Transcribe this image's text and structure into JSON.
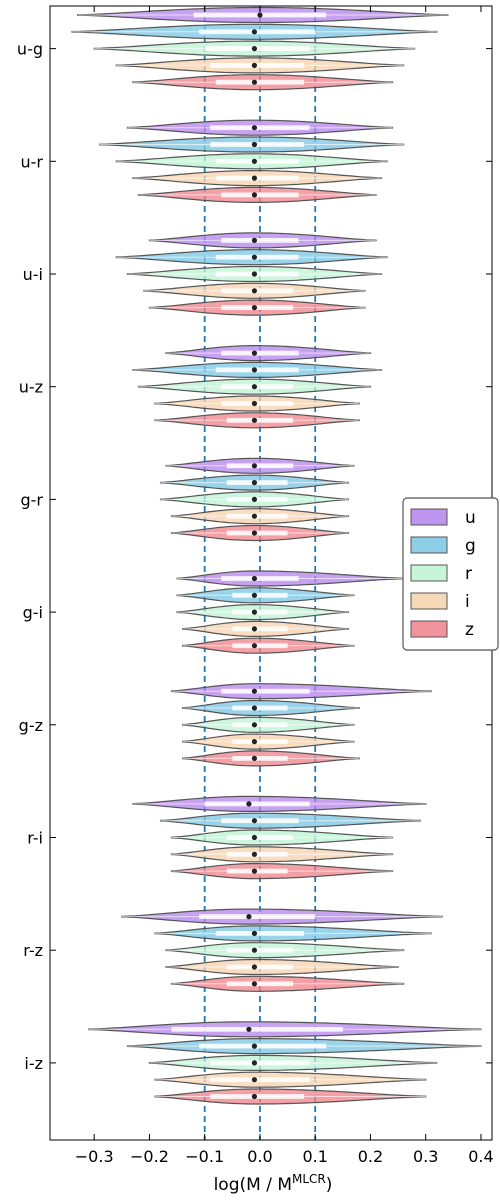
{
  "chart_data": {
    "type": "violin",
    "orientation": "horizontal",
    "title": "",
    "xlabel": "log(M / M",
    "xlabel_superscript": "MLCR",
    "xlabel_suffix": ")",
    "xlim": [
      -0.38,
      0.42
    ],
    "xticks": [
      -0.3,
      -0.2,
      -0.1,
      0.0,
      0.1,
      0.2,
      0.3,
      0.4
    ],
    "xtick_labels": [
      "−0.3",
      "−0.2",
      "−0.1",
      "0.0",
      "0.1",
      "0.2",
      "0.3",
      "0.4"
    ],
    "reference_lines": [
      -0.1,
      0.0,
      0.1
    ],
    "reference_line_color": "#1f77b4",
    "grid": false,
    "legend_position": "right",
    "series": [
      {
        "name": "u",
        "color": "#9b59e6"
      },
      {
        "name": "g",
        "color": "#4db3d9"
      },
      {
        "name": "r",
        "color": "#a8efc4"
      },
      {
        "name": "i",
        "color": "#f2c391"
      },
      {
        "name": "z",
        "color": "#eb5561"
      }
    ],
    "groups": [
      {
        "label": "u-g",
        "violins": [
          {
            "min": -0.33,
            "max": 0.34,
            "q1": -0.12,
            "q3": 0.12,
            "median": 0.0
          },
          {
            "min": -0.34,
            "max": 0.32,
            "q1": -0.11,
            "q3": 0.1,
            "median": -0.01
          },
          {
            "min": -0.3,
            "max": 0.28,
            "q1": -0.1,
            "q3": 0.09,
            "median": -0.01
          },
          {
            "min": -0.26,
            "max": 0.26,
            "q1": -0.09,
            "q3": 0.08,
            "median": -0.01
          },
          {
            "min": -0.23,
            "max": 0.24,
            "q1": -0.08,
            "q3": 0.08,
            "median": -0.01
          }
        ]
      },
      {
        "label": "u-r",
        "violins": [
          {
            "min": -0.24,
            "max": 0.24,
            "q1": -0.09,
            "q3": 0.09,
            "median": -0.01
          },
          {
            "min": -0.29,
            "max": 0.26,
            "q1": -0.09,
            "q3": 0.08,
            "median": -0.01
          },
          {
            "min": -0.26,
            "max": 0.23,
            "q1": -0.08,
            "q3": 0.07,
            "median": -0.01
          },
          {
            "min": -0.23,
            "max": 0.22,
            "q1": -0.08,
            "q3": 0.07,
            "median": -0.01
          },
          {
            "min": -0.22,
            "max": 0.21,
            "q1": -0.07,
            "q3": 0.07,
            "median": -0.01
          }
        ]
      },
      {
        "label": "u-i",
        "violins": [
          {
            "min": -0.2,
            "max": 0.21,
            "q1": -0.07,
            "q3": 0.07,
            "median": -0.01
          },
          {
            "min": -0.26,
            "max": 0.23,
            "q1": -0.08,
            "q3": 0.07,
            "median": -0.01
          },
          {
            "min": -0.24,
            "max": 0.22,
            "q1": -0.08,
            "q3": 0.07,
            "median": -0.01
          },
          {
            "min": -0.21,
            "max": 0.19,
            "q1": -0.07,
            "q3": 0.06,
            "median": -0.01
          },
          {
            "min": -0.2,
            "max": 0.19,
            "q1": -0.07,
            "q3": 0.06,
            "median": -0.01
          }
        ]
      },
      {
        "label": "u-z",
        "violins": [
          {
            "min": -0.17,
            "max": 0.2,
            "q1": -0.07,
            "q3": 0.07,
            "median": -0.01
          },
          {
            "min": -0.23,
            "max": 0.22,
            "q1": -0.08,
            "q3": 0.07,
            "median": -0.01
          },
          {
            "min": -0.22,
            "max": 0.2,
            "q1": -0.07,
            "q3": 0.06,
            "median": -0.01
          },
          {
            "min": -0.19,
            "max": 0.18,
            "q1": -0.07,
            "q3": 0.06,
            "median": -0.01
          },
          {
            "min": -0.19,
            "max": 0.18,
            "q1": -0.06,
            "q3": 0.06,
            "median": -0.01
          }
        ]
      },
      {
        "label": "g-r",
        "violins": [
          {
            "min": -0.17,
            "max": 0.17,
            "q1": -0.06,
            "q3": 0.06,
            "median": -0.01
          },
          {
            "min": -0.18,
            "max": 0.16,
            "q1": -0.06,
            "q3": 0.05,
            "median": -0.01
          },
          {
            "min": -0.18,
            "max": 0.16,
            "q1": -0.06,
            "q3": 0.05,
            "median": -0.01
          },
          {
            "min": -0.16,
            "max": 0.16,
            "q1": -0.06,
            "q3": 0.05,
            "median": -0.01
          },
          {
            "min": -0.16,
            "max": 0.16,
            "q1": -0.06,
            "q3": 0.05,
            "median": -0.01
          }
        ]
      },
      {
        "label": "g-i",
        "violins": [
          {
            "min": -0.15,
            "max": 0.26,
            "q1": -0.07,
            "q3": 0.07,
            "median": -0.01
          },
          {
            "min": -0.15,
            "max": 0.17,
            "q1": -0.05,
            "q3": 0.05,
            "median": -0.01
          },
          {
            "min": -0.15,
            "max": 0.16,
            "q1": -0.05,
            "q3": 0.05,
            "median": -0.01
          },
          {
            "min": -0.14,
            "max": 0.16,
            "q1": -0.05,
            "q3": 0.05,
            "median": -0.01
          },
          {
            "min": -0.14,
            "max": 0.17,
            "q1": -0.05,
            "q3": 0.05,
            "median": -0.01
          }
        ]
      },
      {
        "label": "g-z",
        "violins": [
          {
            "min": -0.16,
            "max": 0.31,
            "q1": -0.07,
            "q3": 0.09,
            "median": -0.01
          },
          {
            "min": -0.14,
            "max": 0.18,
            "q1": -0.05,
            "q3": 0.05,
            "median": -0.01
          },
          {
            "min": -0.14,
            "max": 0.17,
            "q1": -0.05,
            "q3": 0.05,
            "median": -0.01
          },
          {
            "min": -0.14,
            "max": 0.17,
            "q1": -0.05,
            "q3": 0.05,
            "median": -0.01
          },
          {
            "min": -0.14,
            "max": 0.18,
            "q1": -0.05,
            "q3": 0.05,
            "median": -0.01
          }
        ]
      },
      {
        "label": "r-i",
        "violins": [
          {
            "min": -0.23,
            "max": 0.3,
            "q1": -0.1,
            "q3": 0.09,
            "median": -0.02
          },
          {
            "min": -0.18,
            "max": 0.29,
            "q1": -0.07,
            "q3": 0.07,
            "median": -0.01
          },
          {
            "min": -0.16,
            "max": 0.24,
            "q1": -0.06,
            "q3": 0.06,
            "median": -0.01
          },
          {
            "min": -0.16,
            "max": 0.24,
            "q1": -0.06,
            "q3": 0.05,
            "median": -0.01
          },
          {
            "min": -0.16,
            "max": 0.24,
            "q1": -0.06,
            "q3": 0.05,
            "median": -0.01
          }
        ]
      },
      {
        "label": "r-z",
        "violins": [
          {
            "min": -0.25,
            "max": 0.33,
            "q1": -0.11,
            "q3": 0.1,
            "median": -0.02
          },
          {
            "min": -0.19,
            "max": 0.31,
            "q1": -0.08,
            "q3": 0.08,
            "median": -0.01
          },
          {
            "min": -0.17,
            "max": 0.26,
            "q1": -0.06,
            "q3": 0.06,
            "median": -0.01
          },
          {
            "min": -0.17,
            "max": 0.25,
            "q1": -0.06,
            "q3": 0.06,
            "median": -0.01
          },
          {
            "min": -0.16,
            "max": 0.26,
            "q1": -0.06,
            "q3": 0.06,
            "median": -0.01
          }
        ]
      },
      {
        "label": "i-z",
        "violins": [
          {
            "min": -0.31,
            "max": 0.4,
            "q1": -0.16,
            "q3": 0.15,
            "median": -0.02
          },
          {
            "min": -0.24,
            "max": 0.4,
            "q1": -0.11,
            "q3": 0.12,
            "median": -0.01
          },
          {
            "min": -0.2,
            "max": 0.32,
            "q1": -0.09,
            "q3": 0.09,
            "median": -0.01
          },
          {
            "min": -0.19,
            "max": 0.3,
            "q1": -0.09,
            "q3": 0.09,
            "median": -0.01
          },
          {
            "min": -0.19,
            "max": 0.3,
            "q1": -0.09,
            "q3": 0.08,
            "median": -0.01
          }
        ]
      }
    ]
  }
}
